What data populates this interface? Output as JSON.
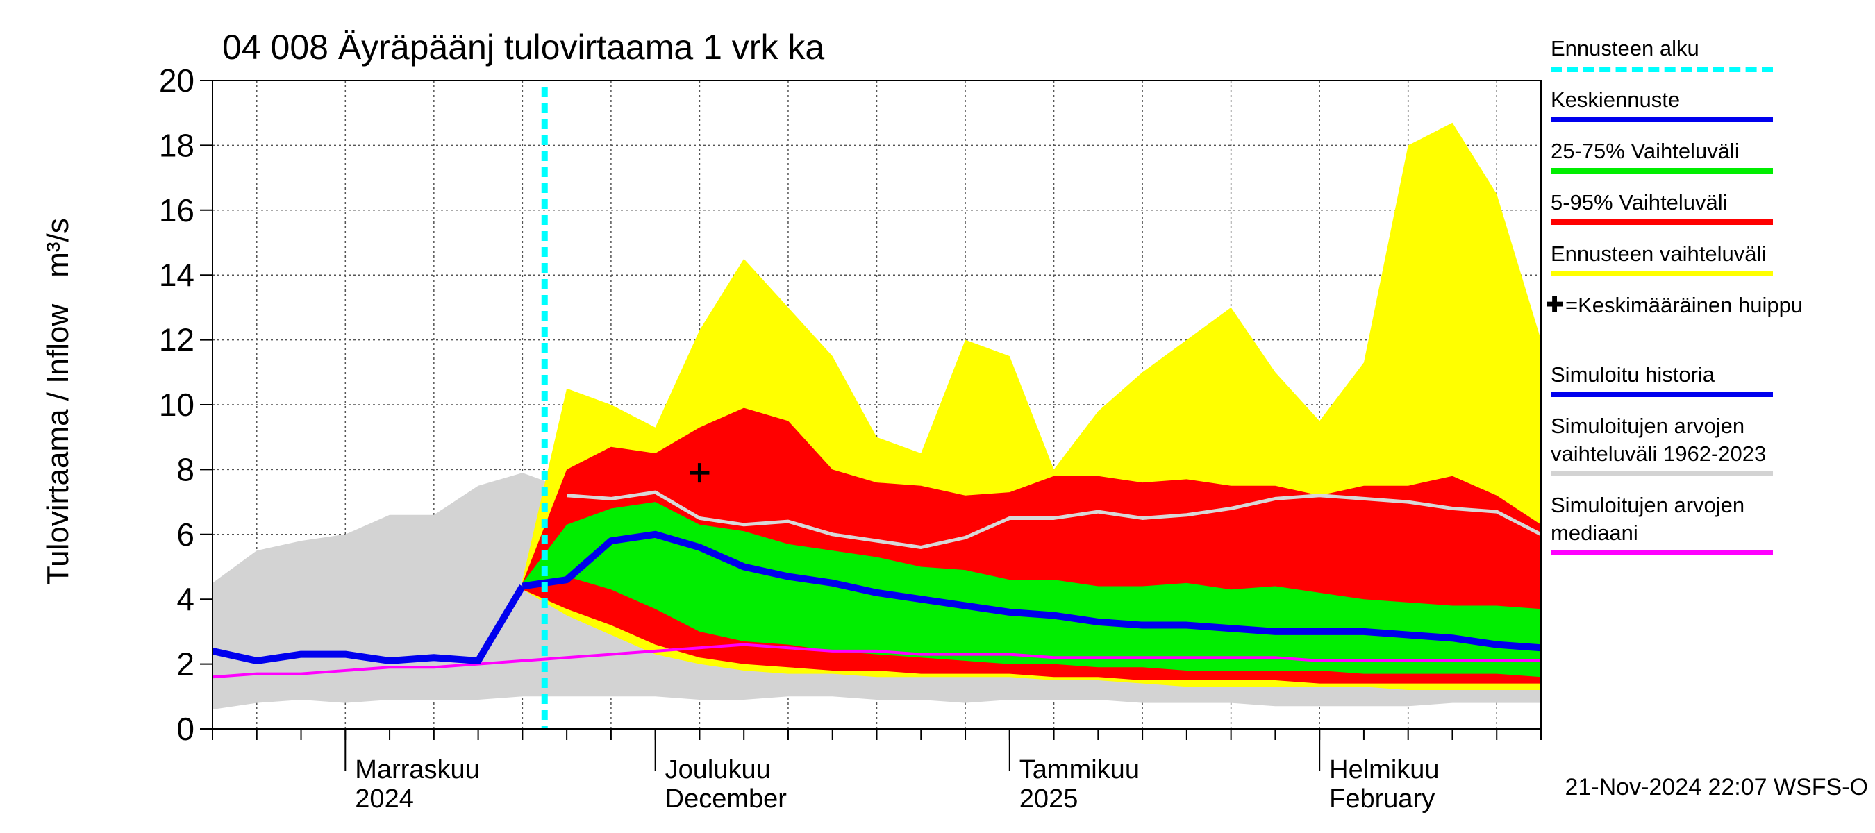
{
  "chart_data": {
    "type": "area",
    "title": "04 008 Äyräpäänj tulovirtaama 1 vrk ka",
    "y_label": "Tulovirtaama / Inflow",
    "y_unit": "m³/s",
    "timestamp": "21-Nov-2024 22:07 WSFS-O",
    "forecast_start": {
      "label": "Ennusteen alku",
      "color": "#00ffff"
    },
    "categories": [
      null,
      null,
      null,
      "Marraskuu\n2024",
      null,
      null,
      null,
      null,
      null,
      null,
      "Joulukuu\nDecember",
      null,
      null,
      null,
      null,
      null,
      null,
      null,
      "Tammikuu\n2025",
      null,
      null,
      null,
      null,
      null,
      null,
      "Helmikuu\nFebruary",
      null,
      null,
      null,
      null,
      null
    ],
    "ylim": [
      0,
      20
    ],
    "yticks": [
      0,
      2,
      4,
      6,
      8,
      10,
      12,
      14,
      16,
      18,
      20
    ],
    "grid": true,
    "series": [
      {
        "name": "Keskiennuste",
        "type": "line",
        "color": "#0000ee",
        "values": [
          null,
          null,
          null,
          null,
          null,
          null,
          null,
          4.4,
          4.6,
          5.8,
          6.0,
          5.6,
          5.0,
          4.7,
          4.5,
          4.2,
          4.0,
          3.8,
          3.6,
          3.5,
          3.3,
          3.2,
          3.2,
          3.1,
          3.0,
          3.0,
          3.0,
          2.9,
          2.8,
          2.6,
          2.5
        ]
      },
      {
        "name": "25-75% Vaihteluväli",
        "type": "band",
        "color": "#00ee00",
        "low": [
          null,
          null,
          null,
          null,
          null,
          null,
          null,
          4.4,
          4.7,
          4.3,
          3.7,
          3.0,
          2.7,
          2.6,
          2.4,
          2.3,
          2.2,
          2.1,
          2.0,
          2.0,
          1.9,
          1.9,
          1.8,
          1.8,
          1.8,
          1.8,
          1.7,
          1.7,
          1.7,
          1.7,
          1.6
        ],
        "high": [
          null,
          null,
          null,
          null,
          null,
          null,
          null,
          4.5,
          6.3,
          6.8,
          7.0,
          6.3,
          6.1,
          5.7,
          5.5,
          5.3,
          5.0,
          4.9,
          4.6,
          4.6,
          4.4,
          4.4,
          4.5,
          4.3,
          4.4,
          4.2,
          4.0,
          3.9,
          3.8,
          3.8,
          3.7
        ]
      },
      {
        "name": "5-95% Vaihteluväli",
        "type": "band",
        "color": "#ff0000",
        "low": [
          null,
          null,
          null,
          null,
          null,
          null,
          null,
          4.3,
          3.7,
          3.2,
          2.6,
          2.2,
          2.0,
          1.9,
          1.8,
          1.8,
          1.7,
          1.7,
          1.7,
          1.6,
          1.6,
          1.5,
          1.5,
          1.5,
          1.5,
          1.4,
          1.4,
          1.4,
          1.4,
          1.4,
          1.4
        ],
        "high": [
          null,
          null,
          null,
          null,
          null,
          null,
          null,
          4.5,
          8.0,
          8.7,
          8.5,
          9.3,
          9.9,
          9.5,
          8.0,
          7.6,
          7.5,
          7.2,
          7.3,
          7.8,
          7.8,
          7.6,
          7.7,
          7.5,
          7.5,
          7.2,
          7.5,
          7.5,
          7.8,
          7.2,
          6.3
        ]
      },
      {
        "name": "Ennusteen vaihteluväli",
        "type": "band",
        "color": "#ffff00",
        "low": [
          null,
          null,
          null,
          null,
          null,
          null,
          null,
          4.3,
          3.5,
          2.9,
          2.3,
          2.0,
          1.8,
          1.7,
          1.7,
          1.6,
          1.6,
          1.6,
          1.6,
          1.5,
          1.5,
          1.4,
          1.3,
          1.3,
          1.3,
          1.3,
          1.3,
          1.2,
          1.2,
          1.2,
          1.2
        ],
        "high": [
          null,
          null,
          null,
          null,
          null,
          null,
          null,
          4.6,
          10.5,
          10.0,
          9.3,
          12.3,
          14.5,
          13.0,
          11.5,
          9.0,
          8.5,
          12.0,
          11.5,
          8.0,
          9.8,
          11.0,
          12.0,
          13.0,
          11.0,
          9.5,
          11.3,
          18.0,
          18.7,
          16.5,
          12.0
        ]
      },
      {
        "name": "=Keskimääräinen huippu",
        "type": "marker",
        "color": "#000000",
        "values": [
          null,
          null,
          null,
          null,
          null,
          null,
          null,
          null,
          null,
          null,
          null,
          7.9,
          null,
          null,
          null,
          null,
          null,
          null,
          null,
          null,
          null,
          null,
          null,
          null,
          null,
          null,
          null,
          null,
          null,
          null,
          null
        ]
      },
      {
        "name": "Simuloitu historia",
        "type": "line",
        "color": "#0000ee",
        "values": [
          2.4,
          2.1,
          2.3,
          2.3,
          2.1,
          2.2,
          2.1,
          4.4,
          null,
          null,
          null,
          null,
          null,
          null,
          null,
          null,
          null,
          null,
          null,
          null,
          null,
          null,
          null,
          null,
          null,
          null,
          null,
          null,
          null,
          null,
          null
        ]
      },
      {
        "name": "Simuloitujen arvojen vaihteluväli 1962-2023",
        "type": "band",
        "color": "#d3d3d3",
        "low": [
          0.6,
          0.8,
          0.9,
          0.8,
          0.9,
          0.9,
          0.9,
          1.0,
          1.0,
          1.0,
          1.0,
          0.9,
          0.9,
          1.0,
          1.0,
          0.9,
          0.9,
          0.8,
          0.9,
          0.9,
          0.9,
          0.8,
          0.8,
          0.8,
          0.7,
          0.7,
          0.7,
          0.7,
          0.8,
          0.8,
          0.8
        ],
        "high": [
          4.5,
          5.5,
          5.8,
          6.0,
          6.6,
          6.6,
          7.5,
          7.9,
          7.4,
          7.0,
          6.8,
          6.5,
          6.5,
          6.5,
          6.8,
          6.7,
          6.9,
          7.0,
          7.1,
          7.0,
          7.0,
          7.2,
          7.3,
          7.3,
          7.2,
          7.0,
          6.9,
          6.8,
          6.6,
          6.4,
          6.2
        ]
      },
      {
        "name": "Simuloitujen arvojen mediaani",
        "type": "line",
        "color": "#ff00ff",
        "values": [
          1.6,
          1.7,
          1.7,
          1.8,
          1.9,
          1.9,
          2.0,
          2.1,
          2.2,
          2.3,
          2.4,
          2.5,
          2.6,
          2.5,
          2.4,
          2.4,
          2.3,
          2.3,
          2.3,
          2.2,
          2.2,
          2.2,
          2.2,
          2.2,
          2.2,
          2.1,
          2.1,
          2.1,
          2.1,
          2.1,
          2.1
        ]
      },
      {
        "type": "line",
        "color": "#d8d8d8",
        "values": [
          null,
          null,
          null,
          null,
          null,
          null,
          null,
          null,
          7.2,
          7.1,
          7.3,
          6.5,
          6.3,
          6.4,
          6.0,
          5.8,
          5.6,
          5.9,
          6.5,
          6.5,
          6.7,
          6.5,
          6.6,
          6.8,
          7.1,
          7.2,
          7.1,
          7.0,
          6.8,
          6.7,
          6.0
        ]
      }
    ]
  }
}
